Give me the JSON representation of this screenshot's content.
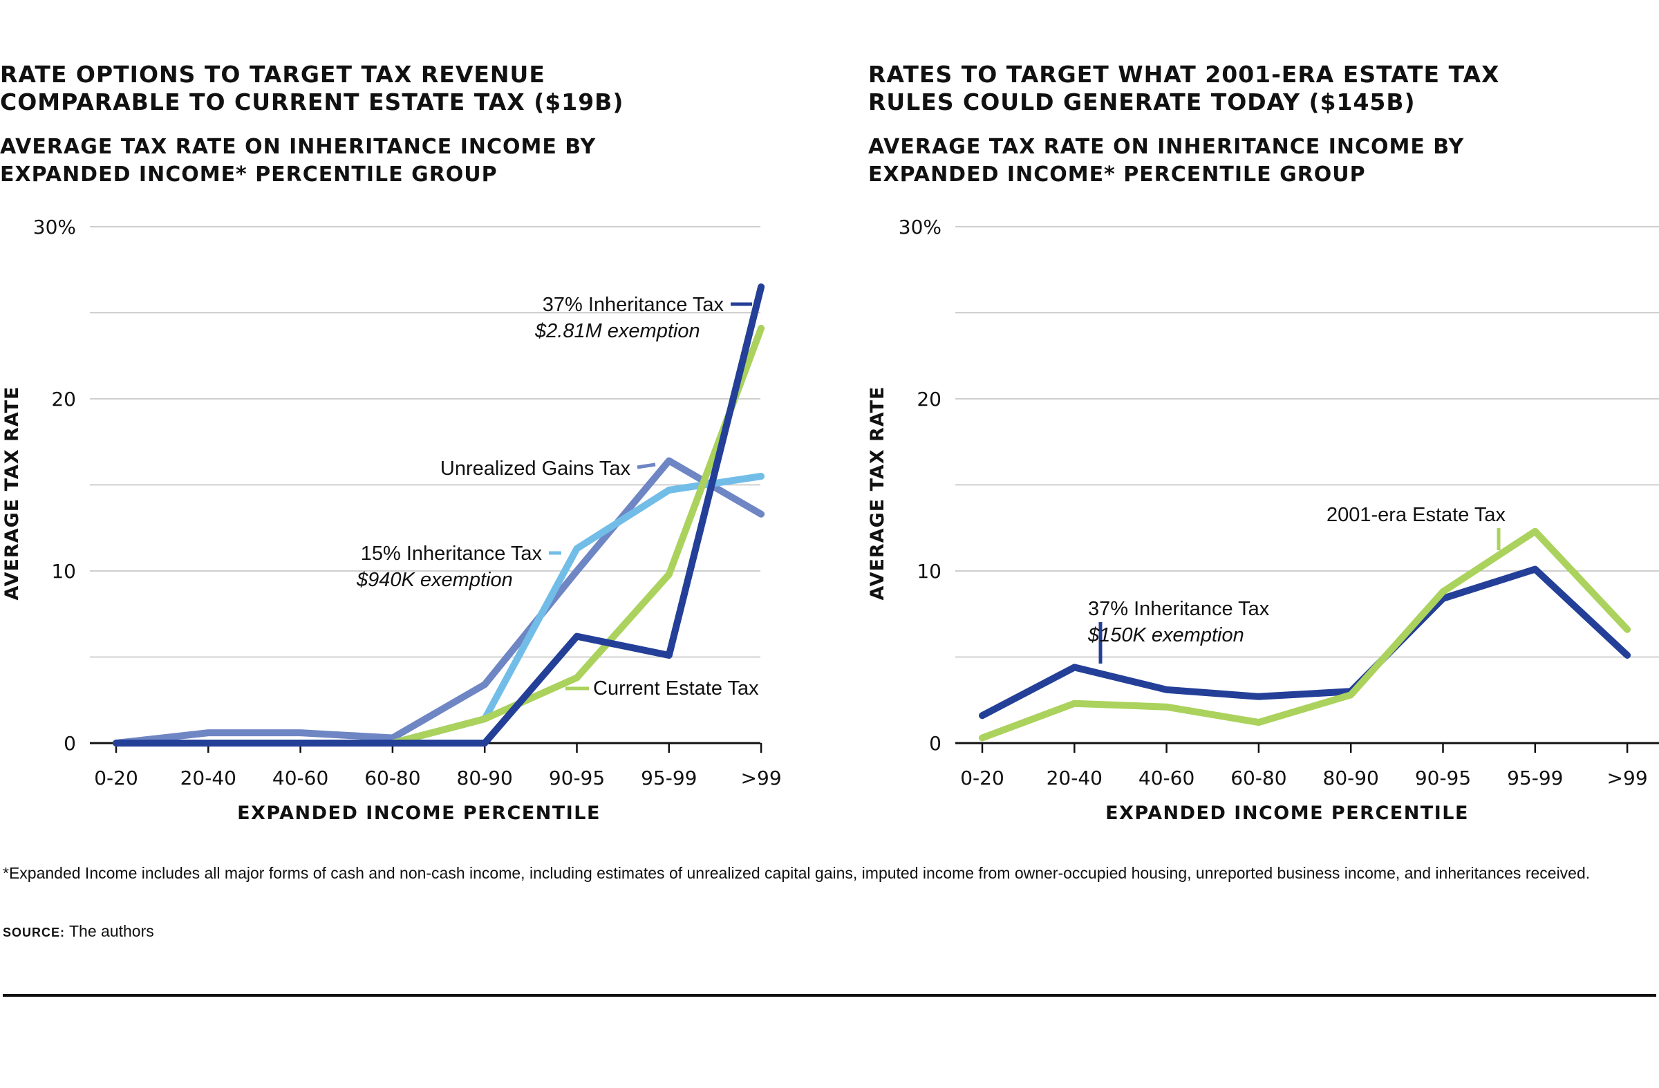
{
  "chart_data": [
    {
      "type": "line",
      "title": "RATE OPTIONS TO TARGET TAX REVENUE\nCOMPARABLE TO CURRENT ESTATE TAX ($19B)",
      "subtitle": "AVERAGE TAX RATE ON INHERITANCE INCOME BY\nEXPANDED INCOME* PERCENTILE GROUP",
      "xlabel": "EXPANDED INCOME PERCENTILE",
      "ylabel": "AVERAGE TAX RATE",
      "categories": [
        "0-20",
        "20-40",
        "40-60",
        "60-80",
        "80-90",
        "90-95",
        "95-99",
        ">99"
      ],
      "ylim": [
        0,
        30
      ],
      "yticks": [
        0,
        10,
        20,
        30
      ],
      "ytick_labels": [
        "0",
        "10",
        "20",
        "30%"
      ],
      "grid": true,
      "series": [
        {
          "name": "Unrealized Gains Tax",
          "color": "#6f86c4",
          "values": [
            0,
            0.6,
            0.6,
            0.3,
            3.4,
            10.0,
            16.4,
            13.3
          ]
        },
        {
          "name": "15% Inheritance Tax",
          "subname": "$940K exemption",
          "color": "#72bde8",
          "values": [
            0,
            0,
            0,
            0,
            1.4,
            11.3,
            14.7,
            15.5
          ]
        },
        {
          "name": "Current Estate Tax",
          "color": "#aad25c",
          "values": [
            0,
            0,
            0,
            0,
            1.4,
            3.8,
            9.8,
            24.1
          ]
        },
        {
          "name": "37% Inheritance Tax",
          "subname": "$2.81M exemption",
          "color": "#243f97",
          "values": [
            0,
            0,
            0,
            0,
            0,
            6.2,
            5.1,
            26.5
          ]
        }
      ]
    },
    {
      "type": "line",
      "title": "RATES TO TARGET WHAT 2001-ERA ESTATE TAX\nRULES COULD GENERATE TODAY ($145B)",
      "subtitle": "AVERAGE TAX RATE ON INHERITANCE INCOME BY\nEXPANDED INCOME* PERCENTILE GROUP",
      "xlabel": "EXPANDED INCOME PERCENTILE",
      "ylabel": "AVERAGE TAX RATE",
      "categories": [
        "0-20",
        "20-40",
        "40-60",
        "60-80",
        "80-90",
        "90-95",
        "95-99",
        ">99"
      ],
      "ylim": [
        0,
        30
      ],
      "yticks": [
        0,
        10,
        20,
        30
      ],
      "ytick_labels": [
        "0",
        "10",
        "20",
        "30%"
      ],
      "grid": true,
      "series": [
        {
          "name": "37% Inheritance Tax",
          "subname": "$150K exemption",
          "color": "#243f97",
          "values": [
            1.6,
            4.4,
            3.1,
            2.7,
            3.0,
            8.4,
            10.1,
            5.1
          ]
        },
        {
          "name": "2001-era Estate Tax",
          "color": "#aad25c",
          "values": [
            0.3,
            2.3,
            2.1,
            1.2,
            2.8,
            8.8,
            12.3,
            6.6
          ]
        }
      ]
    }
  ],
  "footnote": "*Expanded Income includes all major forms of cash and non-cash income, including estimates of unrealized capital gains, imputed income from owner-occupied housing, unreported business income, and inheritances received.",
  "source": {
    "label": "SOURCE:",
    "text": "The authors"
  }
}
